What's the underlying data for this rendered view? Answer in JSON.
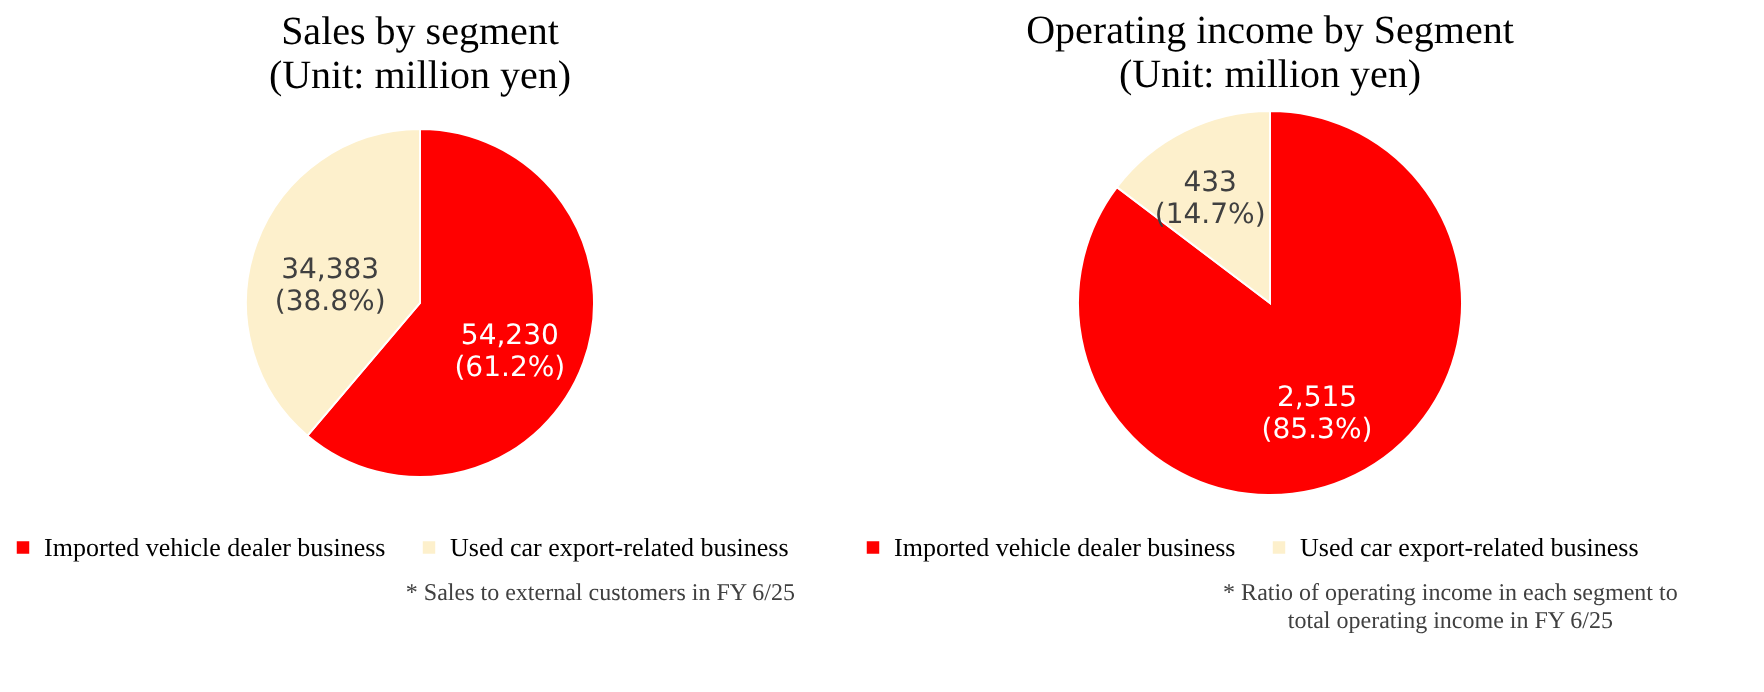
{
  "chart_data": [
    {
      "type": "pie",
      "title": "Sales by segment\n(Unit: million yen)",
      "categories": [
        "Imported vehicle dealer business",
        "Used car export-related business"
      ],
      "values": [
        54230,
        34383
      ],
      "colors": [
        "#ff0000",
        "#fdf0cc"
      ],
      "value_labels": [
        "54,230\n(61.2%)",
        "34,383\n(38.8%)"
      ],
      "legend": "bottom",
      "annotations": [
        "* Sales to external customers in FY 6/25"
      ]
    },
    {
      "type": "pie",
      "title": "Operating income by Segment\n(Unit: million yen)",
      "categories": [
        "Imported vehicle dealer business",
        "Used car export-related business"
      ],
      "values": [
        2515,
        433
      ],
      "colors": [
        "#ff0000",
        "#fdf0cc"
      ],
      "value_labels": [
        "2,515\n(85.3%)",
        "433\n(14.7%)"
      ],
      "legend": "bottom",
      "annotations": [
        "* Ratio of operating income in each segment to total operating income in FY 6/25"
      ]
    }
  ]
}
